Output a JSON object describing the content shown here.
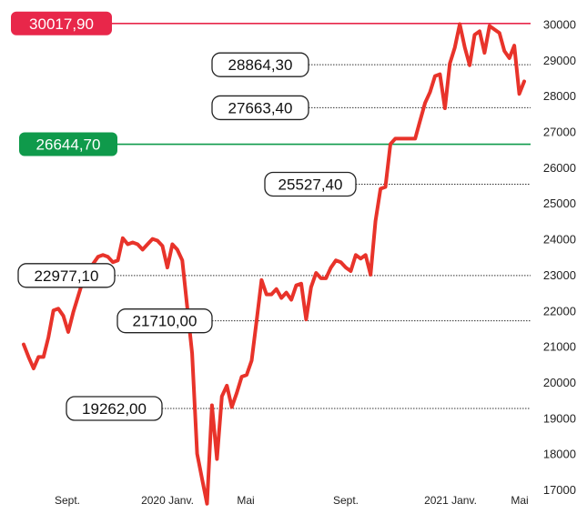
{
  "chart_data": {
    "type": "line",
    "title": "",
    "xlabel": "",
    "ylabel": "",
    "ylim": [
      16500,
      30300
    ],
    "y_ticks": [
      "17000",
      "18000",
      "19000",
      "20000",
      "21000",
      "22000",
      "23000",
      "24000",
      "25000",
      "26000",
      "27000",
      "28000",
      "29000",
      "30000"
    ],
    "x_ticks": [
      "Sept.",
      "2020 Janv.",
      "Mai",
      "Sept.",
      "2021 Janv.",
      "Mai"
    ],
    "series_color": "#e8332a",
    "series": [
      {
        "values": [
          21050,
          20700,
          20380,
          20700,
          20700,
          21250,
          22000,
          22050,
          21850,
          21400,
          21950,
          22400,
          22850,
          23000,
          23300,
          23500,
          23550,
          23500,
          23350,
          23400,
          24020,
          23850,
          23900,
          23850,
          23700,
          23850,
          24000,
          23950,
          23800,
          23200,
          23850,
          23700,
          23400,
          22100,
          20800,
          18000,
          17300,
          16600,
          19350,
          17850,
          19600,
          19900,
          19300,
          19700,
          20150,
          20200,
          20600,
          21700,
          22850,
          22450,
          22450,
          22600,
          22350,
          22500,
          22300,
          22700,
          22750,
          21750,
          22650,
          23050,
          22900,
          22900,
          23200,
          23400,
          23350,
          23200,
          23100,
          23550,
          23450,
          23550,
          23000,
          24500,
          25400,
          25450,
          26650,
          26800,
          26800,
          26800,
          26800,
          26800,
          27300,
          27800,
          28100,
          28550,
          28600,
          27650,
          28900,
          29350,
          30000,
          29350,
          28850,
          29700,
          29800,
          29200,
          29950,
          29850,
          29750,
          29250,
          29050,
          29400,
          28050,
          28400
        ]
      }
    ],
    "reference_lines": [
      {
        "value": 30017.9,
        "label": "30017,90",
        "style": "highlight",
        "color": "#e8274a"
      },
      {
        "value": 28864.3,
        "label": "28864,30",
        "style": "boxed"
      },
      {
        "value": 27663.4,
        "label": "27663,40",
        "style": "boxed"
      },
      {
        "value": 26644.7,
        "label": "26644,70",
        "style": "highlight",
        "color": "#0f9a4b"
      },
      {
        "value": 25527.4,
        "label": "25527,40",
        "style": "boxed"
      },
      {
        "value": 22977.1,
        "label": "22977,10",
        "style": "boxed"
      },
      {
        "value": 21710.0,
        "label": "21710,00",
        "style": "boxed"
      },
      {
        "value": 19262.0,
        "label": "19262,00",
        "style": "boxed"
      }
    ],
    "grid": false,
    "legend": "none"
  }
}
